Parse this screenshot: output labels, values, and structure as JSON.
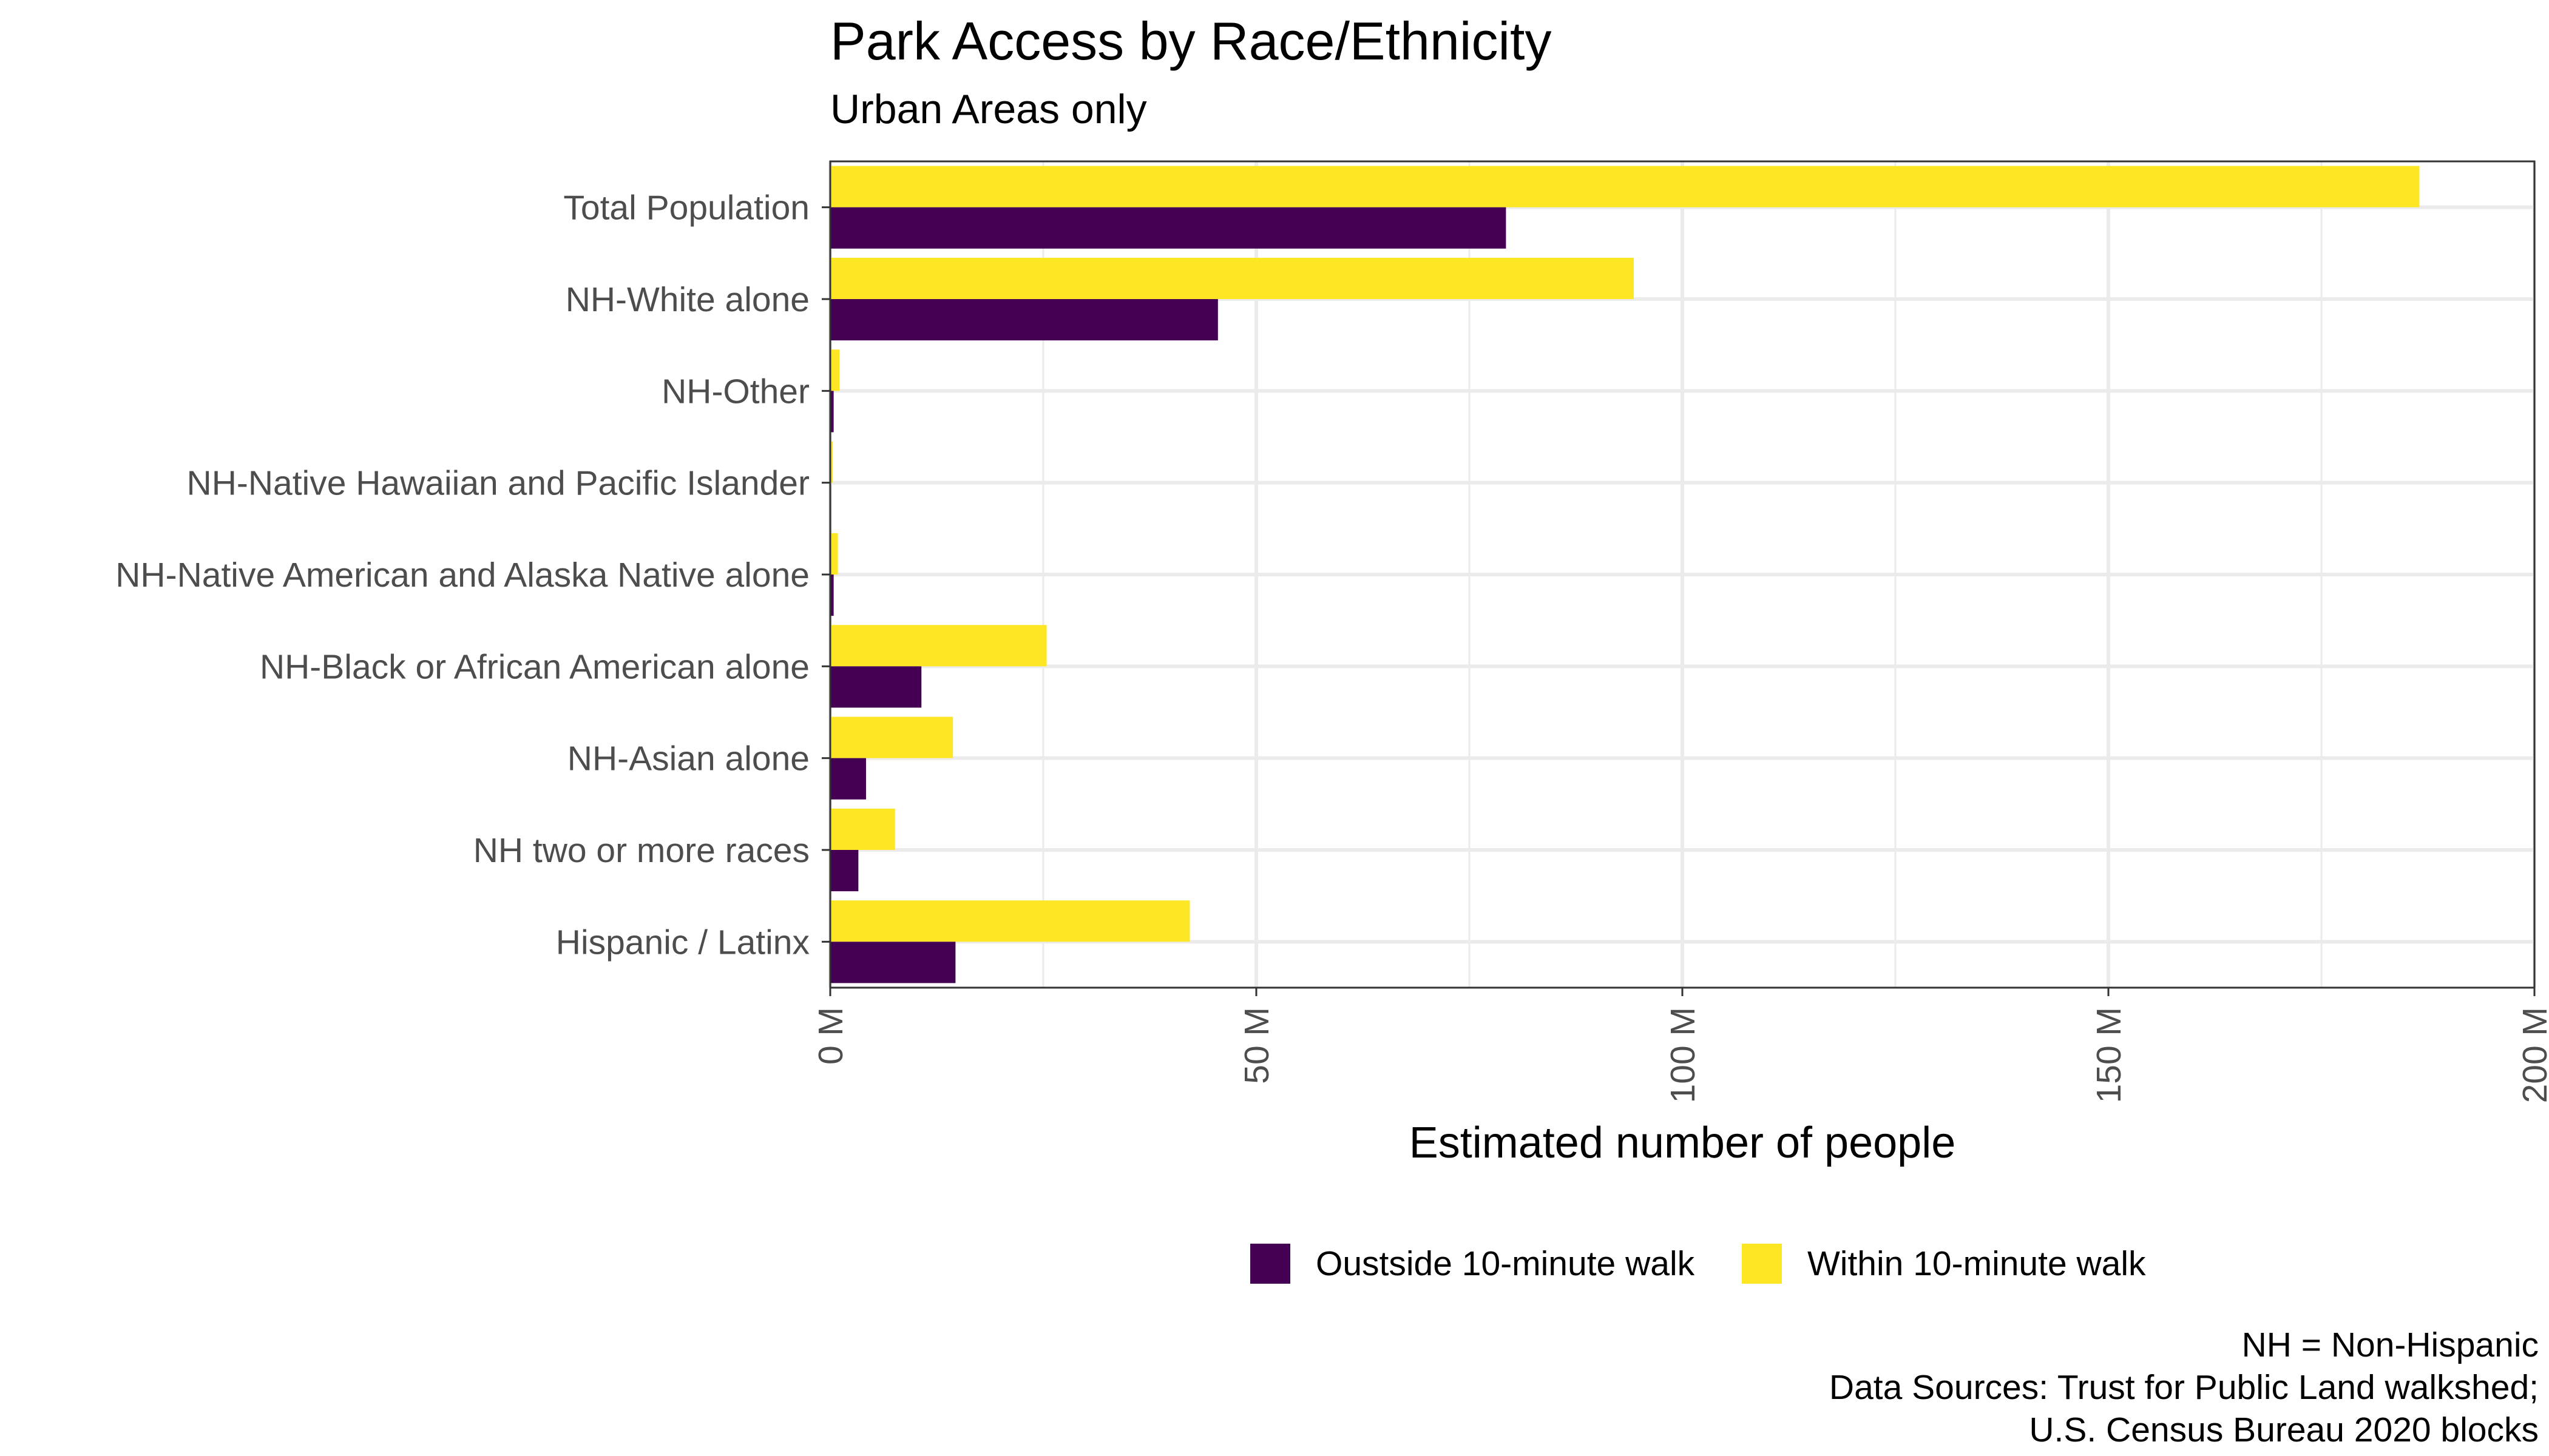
{
  "chart_data": {
    "type": "bar",
    "orientation": "horizontal",
    "title": "Park Access by Race/Ethnicity",
    "subtitle": "Urban Areas only",
    "xlabel": "Estimated number of people",
    "ylabel": "",
    "xlim": [
      0,
      200
    ],
    "x_unit": "M",
    "x_ticks": [
      {
        "value": 0,
        "label": "0 M"
      },
      {
        "value": 50,
        "label": "50 M"
      },
      {
        "value": 100,
        "label": "100 M"
      },
      {
        "value": 150,
        "label": "150 M"
      },
      {
        "value": 200,
        "label": "200 M"
      }
    ],
    "categories": [
      "Total Population",
      "NH-White alone",
      "NH-Other",
      "NH-Native Hawaiian and Pacific Islander",
      "NH-Native American and Alaska Native alone",
      "NH-Black or African American alone",
      "NH-Asian alone",
      "NH two or more races",
      "Hispanic / Latinx"
    ],
    "series": [
      {
        "name": "Oustside 10-minute walk",
        "color": "#440154",
        "values": [
          79.3,
          45.5,
          0.4,
          0.1,
          0.4,
          10.7,
          4.2,
          3.3,
          14.7
        ]
      },
      {
        "name": "Within 10-minute walk",
        "color": "#FDE725",
        "values": [
          186.5,
          94.3,
          1.1,
          0.3,
          0.9,
          25.4,
          14.4,
          7.6,
          42.2
        ]
      }
    ],
    "grid": true,
    "legend_position": "bottom",
    "caption": [
      "NH = Non-Hispanic",
      "Data Sources: Trust for Public Land walkshed;",
      "U.S. Census Bureau 2020 blocks"
    ]
  }
}
